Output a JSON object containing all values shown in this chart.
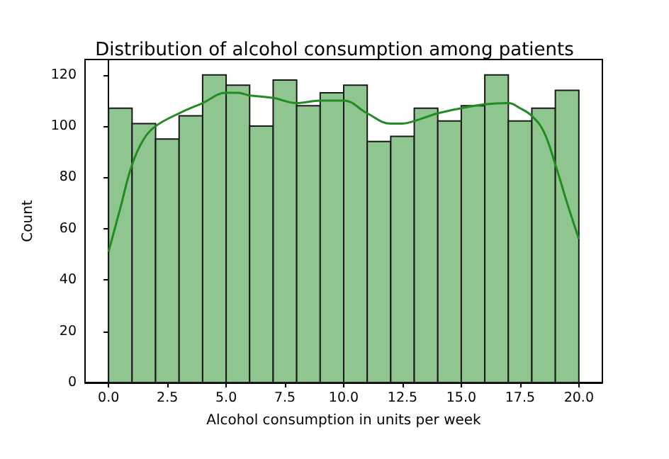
{
  "chart_data": {
    "type": "histogram",
    "title": "Distribution of alcohol consumption among patients",
    "xlabel": "Alcohol consumption in units per week",
    "ylabel": "Count",
    "bins": [
      0,
      1,
      2,
      3,
      4,
      5,
      6,
      7,
      8,
      9,
      10,
      11,
      12,
      13,
      14,
      15,
      16,
      17,
      18,
      19,
      20
    ],
    "values": [
      107,
      101,
      95,
      104,
      120,
      116,
      100,
      118,
      108,
      113,
      116,
      94,
      96,
      107,
      102,
      108,
      120,
      102,
      107,
      114
    ],
    "color": "#8fc58f",
    "series": [
      {
        "type": "line",
        "color": "#228b22",
        "x": [
          0,
          0.5,
          1,
          1.5,
          2,
          3,
          4,
          5,
          5.5,
          6,
          7,
          8,
          9,
          10,
          11,
          12,
          12.5,
          13,
          14,
          15,
          16,
          17,
          17.5,
          18,
          18.5,
          19,
          19.5,
          20
        ],
        "values": [
          51,
          68,
          85,
          95,
          100,
          105,
          109,
          113,
          113,
          112,
          111,
          109,
          110,
          110,
          105,
          101,
          101,
          102,
          105,
          107,
          108.5,
          109,
          107,
          104,
          98,
          85,
          70,
          56
        ]
      }
    ],
    "xlim": [
      -1,
      21
    ],
    "ylim": [
      0,
      126
    ],
    "xticks": [
      {
        "value": 0,
        "label": "0.0"
      },
      2.5,
      {
        "value": 5,
        "label": "5.0"
      },
      7.5,
      {
        "value": 10,
        "label": "10.0"
      },
      12.5,
      {
        "value": 15,
        "label": "15.0"
      },
      17.5,
      {
        "value": 20,
        "label": "20.0"
      }
    ],
    "yticks": [
      0,
      20,
      40,
      60,
      80,
      100,
      120
    ]
  }
}
